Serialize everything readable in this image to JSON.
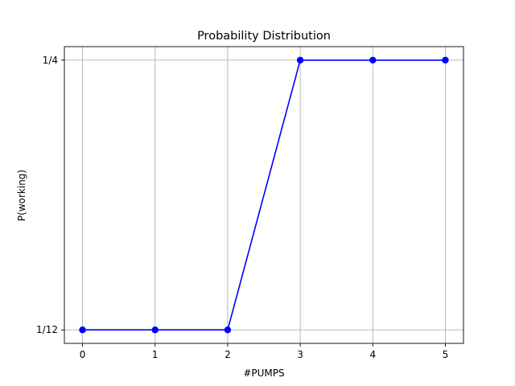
{
  "chart_data": {
    "type": "line",
    "title": "Probability Distribution",
    "xlabel": "#PUMPS",
    "ylabel": "P(working)",
    "x": [
      0,
      1,
      2,
      3,
      4,
      5
    ],
    "series": [
      {
        "color": "#0000ff",
        "marker": "circle",
        "values": [
          0.0833333,
          0.0833333,
          0.0833333,
          0.25,
          0.25,
          0.25
        ]
      }
    ],
    "xticks": [
      0,
      1,
      2,
      3,
      4,
      5
    ],
    "yticks": [
      {
        "value": 0.0833333,
        "label": "1/12"
      },
      {
        "value": 0.25,
        "label": "1/4"
      }
    ],
    "xlim": [
      -0.25,
      5.25
    ],
    "ylim": [
      0.075,
      0.2583333
    ],
    "grid": true,
    "colors": {
      "grid": "#b0b0b0",
      "axes": "#000000"
    }
  }
}
